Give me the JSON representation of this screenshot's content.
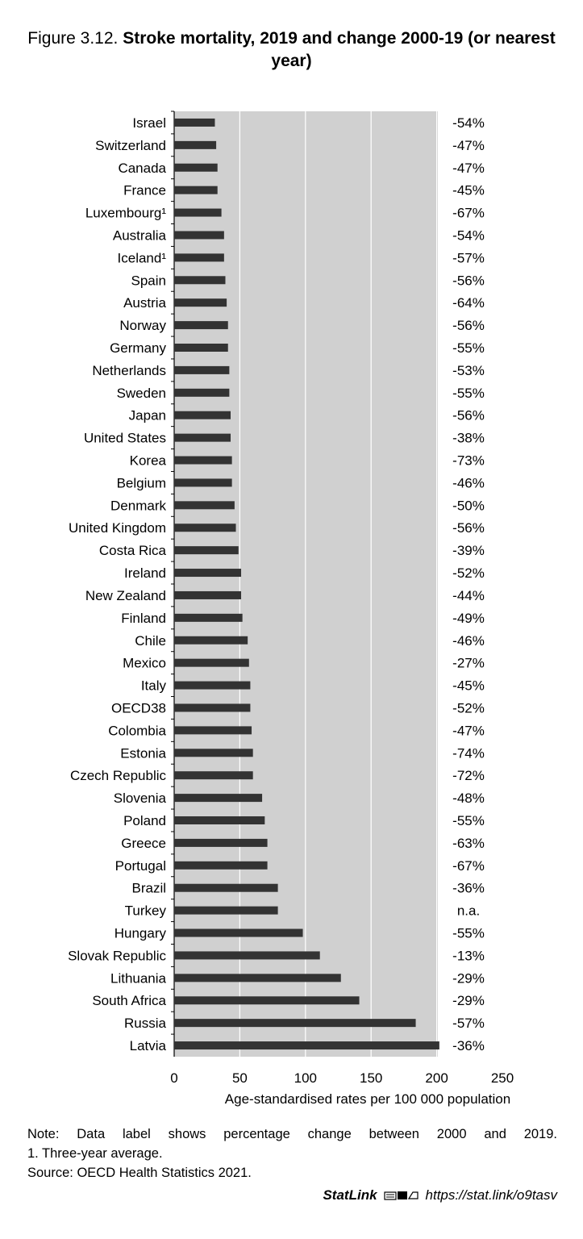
{
  "title": {
    "prefix": "Figure 3.12.",
    "main": "Stroke mortality, 2019 and change 2000-19 (or nearest year)"
  },
  "chart_data": {
    "type": "bar",
    "orientation": "horizontal",
    "categories": [
      "Israel",
      "Switzerland",
      "Canada",
      "France",
      "Luxembourg¹",
      "Australia",
      "Iceland¹",
      "Spain",
      "Austria",
      "Norway",
      "Germany",
      "Netherlands",
      "Sweden",
      "Japan",
      "United States",
      "Korea",
      "Belgium",
      "Denmark",
      "United Kingdom",
      "Costa Rica",
      "Ireland",
      "New Zealand",
      "Finland",
      "Chile",
      "Mexico",
      "Italy",
      "OECD38",
      "Colombia",
      "Estonia",
      "Czech Republic",
      "Slovenia",
      "Poland",
      "Greece",
      "Portugal",
      "Brazil",
      "Turkey",
      "Hungary",
      "Slovak Republic",
      "Lithuania",
      "South Africa",
      "Russia",
      "Latvia"
    ],
    "values": [
      31,
      32,
      33,
      33,
      36,
      38,
      38,
      39,
      40,
      41,
      41,
      42,
      42,
      43,
      43,
      44,
      44,
      46,
      47,
      49,
      51,
      51,
      52,
      56,
      57,
      58,
      58,
      59,
      60,
      60,
      67,
      69,
      71,
      71,
      79,
      79,
      98,
      111,
      127,
      141,
      184,
      202
    ],
    "data_labels": [
      "-54%",
      "-47%",
      "-47%",
      "-45%",
      "-67%",
      "-54%",
      "-57%",
      "-56%",
      "-64%",
      "-56%",
      "-55%",
      "-53%",
      "-55%",
      "-56%",
      "-38%",
      "-73%",
      "-46%",
      "-50%",
      "-56%",
      "-39%",
      "-52%",
      "-44%",
      "-49%",
      "-46%",
      "-27%",
      "-45%",
      "-52%",
      "-47%",
      "-74%",
      "-72%",
      "-48%",
      "-55%",
      "-63%",
      "-67%",
      "-36%",
      "n.a.",
      "-55%",
      "-13%",
      "-29%",
      "-29%",
      "-57%",
      "-36%"
    ],
    "xlabel": "Age-standardised rates per 100 000 population",
    "xlim": [
      0,
      250
    ],
    "xticks": [
      "0",
      "50",
      "100",
      "150",
      "200",
      "250"
    ],
    "grid": true,
    "colors": {
      "bar": "#333333",
      "plot_bg": "#d0d0d0",
      "grid": "#ffffff"
    }
  },
  "notes": {
    "note1": "Note: Data label shows percentage change between 2000 and 2019.",
    "note2": "1. Three-year average.",
    "source": "Source: OECD Health Statistics 2021."
  },
  "statlink": {
    "brand": "StatLink",
    "icon": "statlink-logo-icon",
    "url": "https://stat.link/o9tasv"
  }
}
